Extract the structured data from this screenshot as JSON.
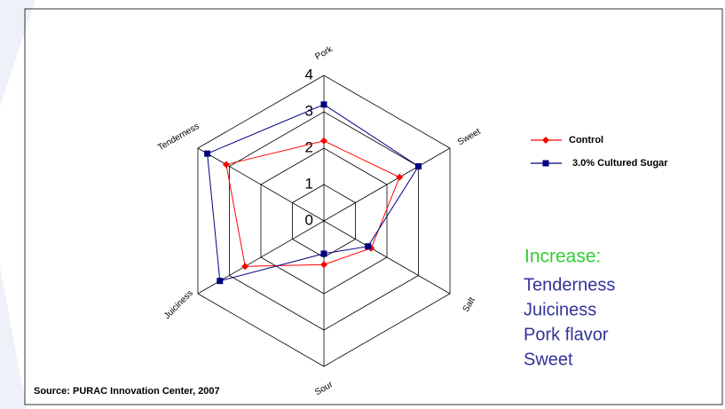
{
  "chart_data": {
    "type": "radar",
    "categories": [
      "Pork",
      "Sweet",
      "Salt",
      "Sour",
      "Juiciness",
      "Tenderness"
    ],
    "series": [
      {
        "name": "Control",
        "color": "#ff0000",
        "marker": "diamond",
        "values": [
          2.2,
          2.4,
          1.5,
          1.2,
          2.5,
          3.1
        ]
      },
      {
        "name": "3.0% Cultured Sugar",
        "color": "#000080",
        "marker": "square",
        "values": [
          3.2,
          3.0,
          1.4,
          0.9,
          3.3,
          3.7
        ]
      }
    ],
    "ylim": [
      0,
      4
    ],
    "yticks": [
      0,
      1,
      2,
      3,
      4
    ],
    "grid": true,
    "annotation": {
      "heading": "Increase:",
      "items": [
        "Tenderness",
        "Juiciness",
        "Pork flavor",
        "Sweet"
      ]
    },
    "source": "Source: PURAC Innovation Center, 2007"
  }
}
